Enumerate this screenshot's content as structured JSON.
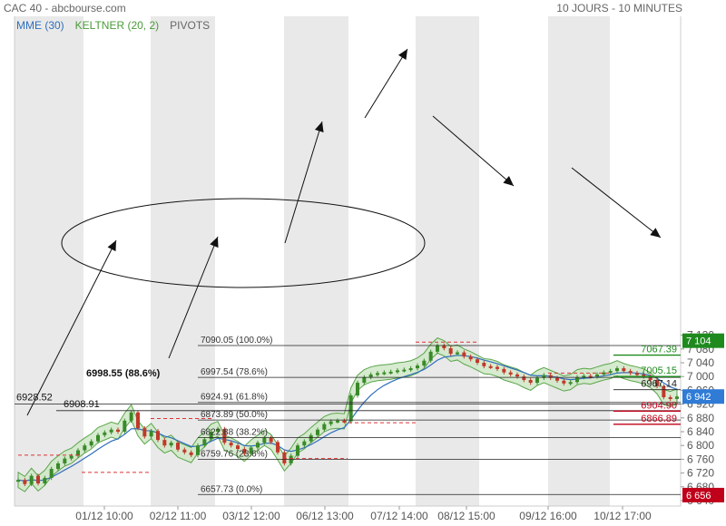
{
  "header": {
    "instrument": "CAC 40 - abcbourse.com",
    "period": "10 JOURS - 10 MINUTES"
  },
  "legend": {
    "mme": "MME (30)",
    "keltner": "KELTNER (20, 2)",
    "pivots": "PIVOTS"
  },
  "colors": {
    "price_up": "#3a8a2a",
    "price_down": "#c0392b",
    "mme": "#2f6fbd",
    "keltner_fill": "#cfe8c7",
    "keltner_line": "#5aa54a",
    "current_badge": "#2f7bd6",
    "top_badge": "#1e8a1e",
    "bottom_badge": "#c0001a"
  },
  "chart_data": {
    "type": "line",
    "ylim": [
      6640,
      7130
    ],
    "y_ticks": [
      "7 120",
      "7 080",
      "7 040",
      "7 000",
      "6 960",
      "6 920",
      "6 880",
      "6 840",
      "6 800",
      "6 760",
      "6 720",
      "6 680",
      "6 640"
    ],
    "x_ticks": [
      "01/12 10:00",
      "02/12 11:00",
      "03/12 12:00",
      "06/12 13:00",
      "07/12 14:00",
      "08/12 15:00",
      "09/12 16:00",
      "10/12 17:00"
    ],
    "fibonacci": [
      {
        "label": "7090.05 (100.0%)",
        "value": 7090.05
      },
      {
        "label": "6997.54 (78.6%)",
        "value": 6997.54
      },
      {
        "label": "6924.91 (61.8%)",
        "value": 6924.91
      },
      {
        "label": "6873.89 (50.0%)",
        "value": 6873.89
      },
      {
        "label": "6822.88 (38.2%)",
        "value": 6822.88
      },
      {
        "label": "6759.76 (23.6%)",
        "value": 6759.76
      },
      {
        "label": "6657.73 (0.0%)",
        "value": 6657.73
      }
    ],
    "level_labels": [
      {
        "label": "6998.55 (88.6%)",
        "value": 6998.55
      },
      {
        "label": "6928.52",
        "value": 6928.52
      },
      {
        "label": "6908.91",
        "value": 6908.91
      }
    ],
    "pivots": [
      {
        "label": "7067.39",
        "value": 7067.39
      },
      {
        "label": "7005.15",
        "value": 7005.15
      },
      {
        "label": "6967.14",
        "value": 6967.14
      },
      {
        "label": "6904.90",
        "value": 6904.9
      },
      {
        "label": "6866.89",
        "value": 6866.89
      }
    ],
    "badges": {
      "top": {
        "label": "7 104",
        "value": 7104
      },
      "current": {
        "label": "6 942",
        "value": 6942
      },
      "bottom": {
        "label": "6 656",
        "value": 6656
      }
    },
    "price": [
      6700,
      6688,
      6712,
      6690,
      6706,
      6732,
      6748,
      6762,
      6770,
      6786,
      6800,
      6812,
      6830,
      6838,
      6846,
      6840,
      6872,
      6896,
      6850,
      6826,
      6842,
      6816,
      6800,
      6808,
      6788,
      6780,
      6772,
      6800,
      6818,
      6840,
      6848,
      6808,
      6800,
      6790,
      6776,
      6794,
      6808,
      6822,
      6810,
      6780,
      6748,
      6770,
      6800,
      6812,
      6830,
      6846,
      6862,
      6870,
      6872,
      6870,
      6945,
      6982,
      6998,
      7006,
      7010,
      7012,
      7014,
      7018,
      7020,
      7024,
      7032,
      7046,
      7072,
      7090,
      7082,
      7066,
      7070,
      7058,
      7050,
      7040,
      7030,
      7028,
      7022,
      7012,
      7006,
      7000,
      6990,
      6982,
      6996,
      7004,
      6996,
      6988,
      6980,
      6984,
      6998,
      7002,
      7000,
      7006,
      7012,
      7016,
      7024,
      7016,
      7010,
      7006,
      7000,
      6990,
      6972,
      6940,
      6935,
      6942
    ]
  }
}
